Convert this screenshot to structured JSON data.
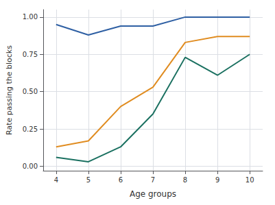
{
  "chart_data": {
    "type": "line",
    "x": [
      4,
      5,
      6,
      7,
      8,
      9,
      10
    ],
    "series": [
      {
        "color": "#2e5fa3",
        "values": [
          0.95,
          0.88,
          0.94,
          0.94,
          1.0,
          1.0,
          1.0
        ]
      },
      {
        "color": "#e08c20",
        "values": [
          0.13,
          0.17,
          0.4,
          0.53,
          0.83,
          0.87,
          0.87
        ]
      },
      {
        "color": "#1a7060",
        "values": [
          0.06,
          0.03,
          0.13,
          0.35,
          0.73,
          0.61,
          0.75
        ]
      }
    ],
    "xlabel": "Age groups",
    "ylabel": "Rate passing the blocks",
    "xlim": [
      3.6,
      10.4
    ],
    "ylim": [
      -0.03,
      1.05
    ],
    "xticks": [
      4,
      5,
      6,
      7,
      8,
      9,
      10
    ],
    "yticks": [
      {
        "value": 0,
        "label": "0.00"
      },
      {
        "value": 0.25,
        "label": "0.25"
      },
      {
        "value": 0.5,
        "label": "0.50"
      },
      {
        "value": 0.75,
        "label": "0.75"
      },
      {
        "value": 1,
        "label": "1.00"
      }
    ],
    "grid": true
  }
}
